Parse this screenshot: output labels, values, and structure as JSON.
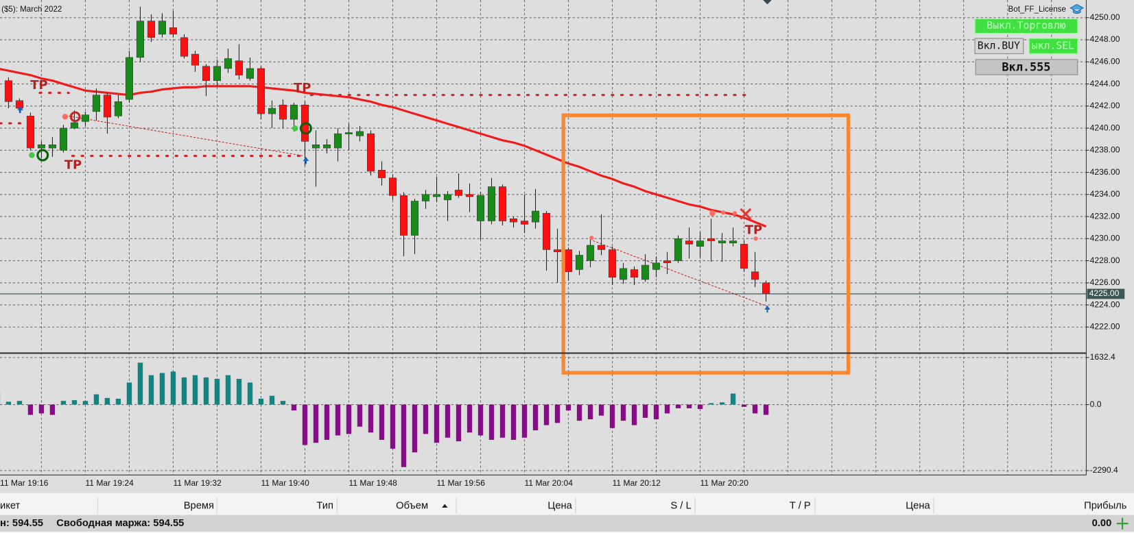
{
  "chart_data": [
    {
      "type": "candlestick",
      "title": "($5): March 2022",
      "categories": [
        "11 Mar 19:16",
        null,
        null,
        null,
        null,
        null,
        null,
        null,
        "11 Mar 19:24",
        null,
        null,
        null,
        null,
        null,
        null,
        null,
        "11 Mar 19:32",
        null,
        null,
        null,
        null,
        null,
        null,
        null,
        "11 Mar 19:40",
        null,
        null,
        null,
        null,
        null,
        null,
        null,
        "11 Mar 19:48",
        null,
        null,
        null,
        null,
        null,
        null,
        null,
        "11 Mar 19:56",
        null,
        null,
        null,
        null,
        null,
        null,
        null,
        "11 Mar 20:04",
        null,
        null,
        null,
        null,
        null,
        null,
        null,
        "11 Mar 20:12",
        null,
        null,
        null,
        null,
        null,
        null,
        null,
        "11 Mar 20:20",
        null,
        null,
        null,
        null,
        null,
        null
      ],
      "open": [
        null,
        4244.3,
        4242.5,
        4241.1,
        4238.2,
        4238.2,
        4238.0,
        4240.0,
        4240.6,
        4241.5,
        4243.0,
        4241.1,
        4242.6,
        4246.4,
        4249.7,
        4248.5,
        4249.1,
        4248.2,
        4246.7,
        4245.6,
        4244.3,
        4245.4,
        4246.1,
        4244.5,
        4245.4,
        4241.3,
        4242.1,
        4240.8,
        4242.1,
        4238.2,
        4238.2,
        4238.2,
        4239.5,
        4239.3,
        4239.5,
        4236.2,
        4235.5,
        4233.9,
        4230.3,
        4233.4,
        4233.8,
        4233.5,
        4234.4,
        4234.0,
        4231.6,
        4231.6,
        4234.7,
        4231.8,
        4231.6,
        4231.5,
        4232.3,
        4229.0,
        4229.0,
        4227.2,
        4228.0,
        4229.4,
        4229.0,
        4226.3,
        4227.2,
        4226.3,
        4227.2,
        4228.0,
        4228.0,
        4229.8,
        4229.3,
        4230.0,
        4229.6,
        4229.6,
        4229.5,
        4227.0,
        4226.0
      ],
      "high": [
        null,
        4244.6,
        4242.7,
        4241.4,
        4238.8,
        4239.2,
        4240.3,
        4241.6,
        4241.5,
        4243.6,
        4243.2,
        4243.0,
        4247.0,
        4251.0,
        4250.3,
        4250.4,
        4250.6,
        4248.5,
        4247.0,
        4245.8,
        4246.2,
        4247.2,
        4247.6,
        4246.4,
        4245.6,
        4242.5,
        4242.6,
        4242.3,
        4242.4,
        4239.8,
        4239.0,
        4240.0,
        4240.4,
        4240.2,
        4239.8,
        4237.0,
        4235.8,
        4234.2,
        4233.6,
        4234.4,
        4235.6,
        4234.3,
        4235.9,
        4235.0,
        4234.2,
        4235.5,
        4234.9,
        4232.0,
        4234.0,
        4234.5,
        4232.5,
        4230.9,
        4229.2,
        4228.9,
        4230.0,
        4232.2,
        4229.3,
        4227.8,
        4227.5,
        4228.6,
        4228.4,
        4228.8,
        4230.3,
        4231.0,
        4230.6,
        4231.8,
        4230.5,
        4231.0,
        4229.8,
        4228.8,
        4226.2
      ],
      "low": [
        null,
        4241.8,
        4241.4,
        4238.0,
        4237.3,
        4237.4,
        4237.8,
        4239.9,
        4240.2,
        4240.7,
        4239.5,
        4240.9,
        4242.3,
        4246.0,
        4247.8,
        4248.2,
        4248.2,
        4246.3,
        4245.1,
        4242.9,
        4243.8,
        4245.0,
        4244.4,
        4244.3,
        4240.8,
        4240.0,
        4240.0,
        4239.7,
        4236.6,
        4234.7,
        4237.7,
        4237.0,
        4238.0,
        4238.8,
        4235.7,
        4234.8,
        4233.5,
        4228.4,
        4228.6,
        4232.7,
        4233.3,
        4231.6,
        4233.7,
        4232.4,
        4229.9,
        4231.3,
        4231.2,
        4231.0,
        4230.5,
        4230.9,
        4227.1,
        4226.0,
        4226.2,
        4226.7,
        4227.4,
        4228.5,
        4225.8,
        4225.9,
        4225.8,
        4226.1,
        4226.5,
        4226.8,
        4227.8,
        4228.2,
        4228.3,
        4227.9,
        4227.9,
        4229.3,
        4227.0,
        4225.6,
        4224.3
      ],
      "close": [
        null,
        4242.4,
        4241.8,
        4238.2,
        4238.5,
        4238.5,
        4240.0,
        4240.5,
        4241.2,
        4243.0,
        4241.0,
        4242.4,
        4246.4,
        4249.7,
        4248.2,
        4249.7,
        4248.5,
        4246.5,
        4245.7,
        4244.3,
        4245.6,
        4246.3,
        4244.8,
        4245.4,
        4241.3,
        4241.8,
        4240.8,
        4242.1,
        4238.8,
        4238.5,
        4238.5,
        4239.5,
        4239.6,
        4239.7,
        4236.1,
        4235.5,
        4233.9,
        4230.3,
        4233.4,
        4234.0,
        4234.0,
        4234.0,
        4233.9,
        4233.8,
        4233.9,
        4234.7,
        4231.6,
        4231.5,
        4231.3,
        4232.5,
        4229.0,
        4228.8,
        4227.0,
        4228.5,
        4229.4,
        4229.0,
        4226.5,
        4227.3,
        4226.5,
        4227.6,
        4227.8,
        4227.8,
        4230.0,
        4229.5,
        4229.8,
        4229.8,
        4229.8,
        4229.8,
        4227.3,
        4226.3,
        4225.0
      ],
      "up_color": "#1a8a1a",
      "down_color": "#ff1010",
      "ma": {
        "color": "#ee1c1c",
        "values": [
          4245.4,
          4245.2,
          4245.0,
          4244.8,
          4244.5,
          4244.3,
          4244.0,
          4243.7,
          4243.4,
          4243.3,
          4243.2,
          4243.1,
          4243.0,
          4243.2,
          4243.3,
          4243.5,
          4243.6,
          4243.7,
          4243.7,
          4243.8,
          4243.8,
          4243.8,
          4243.8,
          4243.8,
          4243.7,
          4243.6,
          4243.5,
          4243.4,
          4243.2,
          4243.1,
          4243.0,
          4242.9,
          4242.8,
          4242.6,
          4242.4,
          4242.1,
          4241.9,
          4241.6,
          4241.3,
          4241.0,
          4240.7,
          4240.4,
          4240.1,
          4239.8,
          4239.5,
          4239.2,
          4238.9,
          4238.7,
          4238.4,
          4238.0,
          4237.6,
          4237.2,
          4236.8,
          4236.5,
          4236.1,
          4235.7,
          4235.4,
          4235.0,
          4234.7,
          4234.3,
          4234.0,
          4233.7,
          4233.4,
          4233.1,
          4232.9,
          4232.6,
          4232.4,
          4232.2,
          4231.9,
          4231.5,
          4231.1
        ]
      },
      "last_price": {
        "value": 4225,
        "label": "4225.00"
      },
      "annotations": [
        "TP",
        "TP",
        "TP",
        "TP"
      ],
      "ylim": [
        4219.7,
        4251.6
      ],
      "yticks": [
        {
          "value": 4222,
          "label": "4222.00"
        },
        {
          "value": 4224,
          "label": "4224.00"
        },
        {
          "value": 4226,
          "label": "4226.00"
        },
        {
          "value": 4228,
          "label": "4228.00"
        },
        {
          "value": 4230,
          "label": "4230.00"
        },
        {
          "value": 4232,
          "label": "4232.00"
        },
        {
          "value": 4234,
          "label": "4234.00"
        },
        {
          "value": 4236,
          "label": "4236.00"
        },
        {
          "value": 4238,
          "label": "4238.00"
        },
        {
          "value": 4240,
          "label": "4240.00"
        },
        {
          "value": 4242,
          "label": "4242.00"
        },
        {
          "value": 4244,
          "label": "4244.00"
        },
        {
          "value": 4246,
          "label": "4246.00"
        },
        {
          "value": 4248,
          "label": "4248.00"
        },
        {
          "value": 4250,
          "label": "4250.00"
        }
      ],
      "grid": true
    },
    {
      "type": "bar",
      "values": [
        459,
        100,
        128,
        -357,
        -306,
        -357,
        128,
        153,
        128,
        357,
        230,
        204,
        765,
        1454,
        1020,
        1097,
        1148,
        944,
        1020,
        944,
        893,
        1020,
        893,
        765,
        204,
        306,
        128,
        -204,
        -1403,
        -1326,
        -1224,
        -1071,
        -1020,
        -765,
        -969,
        -1224,
        -1530,
        -2168,
        -1658,
        -1020,
        -1326,
        -1148,
        -1275,
        -969,
        -1071,
        -1224,
        -1148,
        -1224,
        -1148,
        -893,
        -714,
        -638,
        -204,
        -561,
        -510,
        -383,
        -816,
        -561,
        -714,
        -459,
        -510,
        -306,
        -128,
        -128,
        -153,
        51,
        77,
        383,
        -77,
        -306,
        -357
      ],
      "positive_color": "#0f8585",
      "negative_color": "#8b0a8b",
      "ylim": [
        -2443,
        1734
      ],
      "yticks": [
        -2290.4,
        {
          "value": 0,
          "label": "0.0"
        },
        1632.4
      ],
      "grid": true
    }
  ],
  "license_label": "Bot_FF_License",
  "buttons": [
    "Выкл.Торговлю",
    "Вкл.BUY",
    "ыкл.SEL",
    "Вкл.555"
  ],
  "table": {
    "columns": [
      "икет",
      "Время",
      "Тип",
      "Объем",
      "Цена",
      "S / L",
      "T / P",
      "Цена",
      "Прибыль"
    ]
  },
  "status": {
    "balance": "н: 594.55",
    "free_margin": "Свободная маржа: 594.55",
    "profit": "0.00"
  }
}
